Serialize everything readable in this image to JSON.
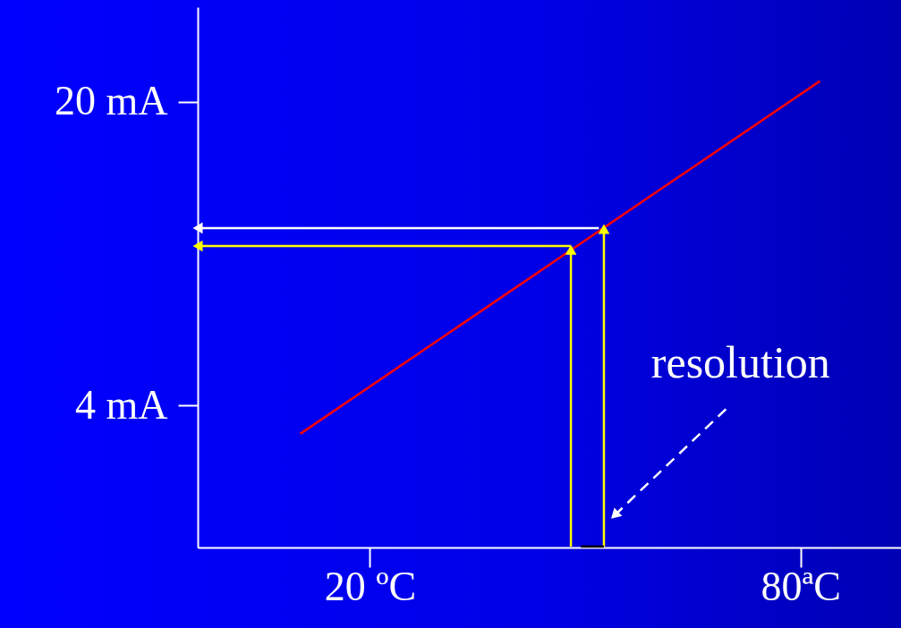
{
  "chart_data": {
    "type": "line",
    "xlim": [
      -4,
      94
    ],
    "ylim": [
      -3.5,
      25
    ],
    "xticks": [
      {
        "value": 20,
        "label": "20 ºC"
      },
      {
        "value": 80,
        "label": "80ªC"
      }
    ],
    "yticks": [
      {
        "value": 4,
        "label": "4 mA"
      },
      {
        "value": 20,
        "label": "20 mA"
      }
    ],
    "series": [
      {
        "color": "#ff0000",
        "x": [
          10.3,
          82.7
        ],
        "values": [
          2.5,
          21.1
        ]
      },
      {
        "color": "#ffff00",
        "x": [
          48,
          48
        ],
        "values": [
          -3.45,
          12.2
        ],
        "marker": "triangle"
      },
      {
        "color": "#ffff00",
        "x": [
          52.6,
          52.6
        ],
        "values": [
          -3.45,
          13.3
        ],
        "marker": "triangle"
      },
      {
        "color": "#ffff00",
        "x": [
          48,
          -4
        ],
        "values": [
          12.4,
          12.4
        ],
        "marker": "triangle"
      },
      {
        "color": "#ffffff",
        "x": [
          51.9,
          -4
        ],
        "values": [
          13.35,
          13.35
        ],
        "marker": "triangle"
      },
      {
        "color": "#ffffff",
        "x": [
          69.6,
          54.1
        ],
        "values": [
          3.8,
          -1.8
        ],
        "marker": "triangle",
        "line_style": "dashed"
      },
      {
        "color": "#000000",
        "x": [
          49.4,
          52.6
        ],
        "values": [
          -3.45,
          -3.45
        ]
      }
    ],
    "annotations": [
      "resolution"
    ]
  }
}
